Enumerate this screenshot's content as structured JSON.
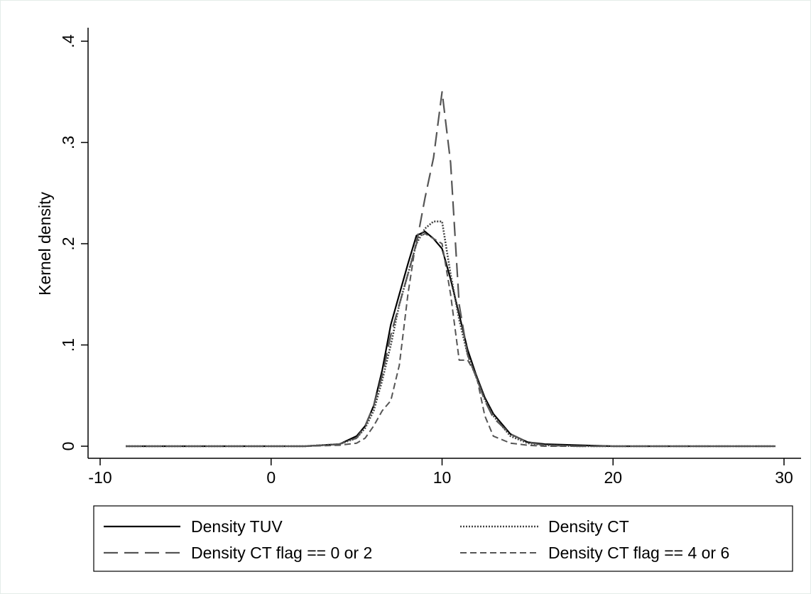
{
  "chart_data": {
    "type": "line",
    "title": "",
    "xlabel": "",
    "ylabel": "Kernel density",
    "xlim": [
      -10,
      30
    ],
    "ylim": [
      0,
      0.4
    ],
    "xticks": [
      -10,
      0,
      10,
      20,
      30
    ],
    "xtick_labels": [
      "-10",
      "0",
      "10",
      "20",
      "30"
    ],
    "yticks": [
      0,
      0.1,
      0.2,
      0.3,
      0.4
    ],
    "ytick_labels": [
      "0",
      ".1",
      ".2",
      ".3",
      ".4"
    ],
    "grid": false,
    "legend_position": "bottom",
    "series": [
      {
        "name": "Density TUV",
        "style": "solid",
        "color": "#000000",
        "x": [
          -8.5,
          2,
          4,
          5,
          5.5,
          6,
          6.5,
          7,
          7.5,
          8,
          8.5,
          9,
          9.5,
          10,
          10.5,
          11,
          11.5,
          12,
          12.5,
          13,
          14,
          15,
          16,
          18,
          20,
          25,
          29.5
        ],
        "y": [
          0,
          0,
          0.002,
          0.01,
          0.02,
          0.04,
          0.075,
          0.12,
          0.15,
          0.18,
          0.208,
          0.212,
          0.205,
          0.195,
          0.165,
          0.13,
          0.095,
          0.07,
          0.048,
          0.032,
          0.012,
          0.004,
          0.002,
          0.001,
          0,
          0,
          0
        ]
      },
      {
        "name": "Density CT",
        "style": "dotted",
        "color": "#444444",
        "x": [
          -8.5,
          2,
          4,
          5,
          5.5,
          6,
          6.5,
          7,
          7.5,
          8,
          8.5,
          9,
          9.5,
          10,
          10.5,
          11,
          11.5,
          12,
          12.5,
          13,
          14,
          15,
          16,
          18,
          20,
          25,
          29.5
        ],
        "y": [
          0,
          0,
          0.002,
          0.008,
          0.018,
          0.035,
          0.065,
          0.1,
          0.14,
          0.17,
          0.2,
          0.215,
          0.222,
          0.222,
          0.17,
          0.125,
          0.09,
          0.068,
          0.046,
          0.03,
          0.01,
          0.003,
          0.001,
          0,
          0,
          0,
          0
        ]
      },
      {
        "name": "Density CT flag == 0 or 2",
        "style": "longdash",
        "color": "#555555",
        "x": [
          -8.5,
          2,
          4,
          5,
          5.5,
          6,
          6.5,
          7,
          7.5,
          8,
          8.5,
          9,
          9.5,
          10,
          10.5,
          11,
          11.5,
          12,
          12.5,
          13,
          14,
          15,
          16,
          18,
          20,
          25,
          29.5
        ],
        "y": [
          0,
          0,
          0.002,
          0.008,
          0.02,
          0.04,
          0.07,
          0.11,
          0.14,
          0.17,
          0.2,
          0.245,
          0.285,
          0.35,
          0.28,
          0.14,
          0.09,
          0.068,
          0.045,
          0.028,
          0.012,
          0.004,
          0.001,
          0,
          0,
          0,
          0
        ]
      },
      {
        "name": "Density CT flag == 4 or 6",
        "style": "shortdash",
        "color": "#555555",
        "x": [
          -8.5,
          2,
          4,
          5,
          5.5,
          6,
          6.5,
          7,
          7.5,
          8,
          8.5,
          9,
          9.5,
          10,
          10.5,
          11,
          11.5,
          12,
          12.5,
          13,
          14,
          15,
          16,
          18,
          20,
          25,
          29.5
        ],
        "y": [
          0,
          0,
          0.001,
          0.003,
          0.008,
          0.02,
          0.035,
          0.045,
          0.08,
          0.15,
          0.205,
          0.21,
          0.205,
          0.2,
          0.15,
          0.085,
          0.085,
          0.07,
          0.03,
          0.01,
          0.003,
          0.001,
          0,
          0,
          0,
          0,
          0
        ]
      }
    ]
  }
}
